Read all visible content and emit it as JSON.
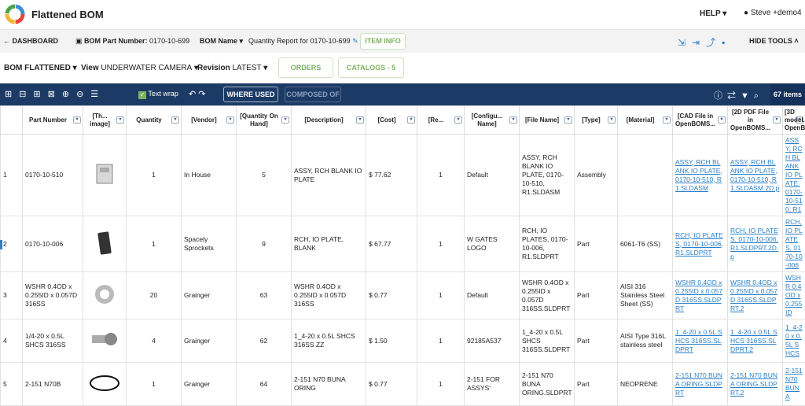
{
  "header": {
    "title": "Flattened BOM",
    "help": "HELP",
    "user": "Steve +demo4"
  },
  "nav": {
    "dashboard": "DASHBOARD",
    "bom_part_number_label": "BOM Part Number:",
    "bom_part_number": "0170-10-699",
    "bom_name_label": "BOM Name",
    "bom_name": "Quantity Report for 0170-10-699",
    "item_info": "ITEM INFO",
    "hide_tools": "HIDE TOOLS"
  },
  "selectors": {
    "bom_label": "BOM",
    "bom_value": "FLATTENED",
    "view_label": "View",
    "view_value": "UNDERWATER CAMERA",
    "revision_label": "Revision",
    "revision_value": "LATEST",
    "orders": "ORDERS",
    "catalogs": "CATALOGS - 5"
  },
  "toolbar": {
    "text_wrap": "Text wrap",
    "where_used": "WHERE USED",
    "composed_of": "COMPOSED OF",
    "items_count": "67 items"
  },
  "table": {
    "headers": [
      "Part Number",
      "[Th... image]",
      "Quantity",
      "[Vendor]",
      "[Quantity On Hand]",
      "[Description]",
      "[Cost]",
      "[Re...",
      "[Configu... Name]",
      "[File Name]",
      "[Type]",
      "[Material]",
      "[CAD File in OpenBOMS...",
      "[2D PDF File in OpenBOMS...",
      "[3D model... OpenB..."
    ],
    "rows": [
      [
        "1",
        "0170-10-510",
        "1",
        "In House",
        "5",
        "ASSY, RCH BLANK IO PLATE",
        "$ 77.62",
        "1",
        "Default",
        "ASSY, RCH BLANK IO PLATE, 0170-10-510, R1.SLDASM",
        "Assembly",
        null,
        "ASSY, RCH BLANK IO PLATE, 0170-10-510, R1.SLDASM",
        "ASSY, RCH BLANK IO PLATE, 0170-10-510, R1.SLDASM.2D.p",
        "ASSY, RCH BLANK IO PLATE, 0170-10-510, R1"
      ],
      [
        "2",
        "0170-10-006",
        "1",
        "Spacely Sprockets",
        "9",
        "RCH, IO PLATE, BLANK",
        "$ 67.77",
        "1",
        "W GATES LOGO",
        "RCH, IO PLATES, 0170-10-006, R1.SLDPRT",
        "Part",
        "6061-T6 (SS)",
        "RCH, IO PLATES, 0170-10-006, R1.SLDPRT",
        "RCH, IO PLATES, 0170-10-006, R1.SLDPRT.2D.p",
        "RCH, IO PLATES, 0170-10-006"
      ],
      [
        "3",
        "WSHR 0.4OD x 0.255ID x 0.057D 316SS",
        "20",
        "Grainger",
        "63",
        "WSHR 0.4OD x 0.255ID x 0.057D 316SS",
        "$ 0.77",
        "1",
        "Default",
        "WSHR 0.4OD x 0.255ID x 0.057D 316SS.SLDPRT",
        "Part",
        "AISI 316 Stainless Steel Sheet (SS)",
        "WSHR 0.4OD x 0.255ID x 0.057D 316SS.SLDPRT",
        "WSHR 0.4OD x 0.255ID x 0.057D 316SS.SLDPRT.2",
        "WSHR 0.4OD x 0.255ID"
      ],
      [
        "4",
        "1/4-20 x 0.5L SHCS 316SS",
        "4",
        "Grainger",
        "62",
        "1_4-20 x 0.5L SHCS 316SS ZZ",
        "$ 1.50",
        "1",
        "92185A537",
        "1_4-20 x 0.5L SHCS 316SS.SLDPRT",
        "Part",
        "AISI Type 316L stainless steel",
        "1_4-20 x 0.5L SHCS 316SS.SLDPRT",
        "1_4-20 x 0.5L SHCS 316SS.SLDPRT.2",
        "1_4-20 x 0.5L SHCS"
      ],
      [
        "5",
        "2-151 N70B",
        "1",
        "Grainger",
        "64",
        "2-151 N70 BUNA ORING",
        "$ 0.77",
        "1",
        "2-151 FOR ASSYS'",
        "2-151 N70 BUNA ORING.SLDPRT",
        "Part",
        "NEOPRENE",
        "2-151 N70 BUNA ORING.SLDPRT",
        "2-151 N70 BUNA ORING.SLDPRT.2",
        "2-151 N70 BUNA"
      ]
    ]
  }
}
